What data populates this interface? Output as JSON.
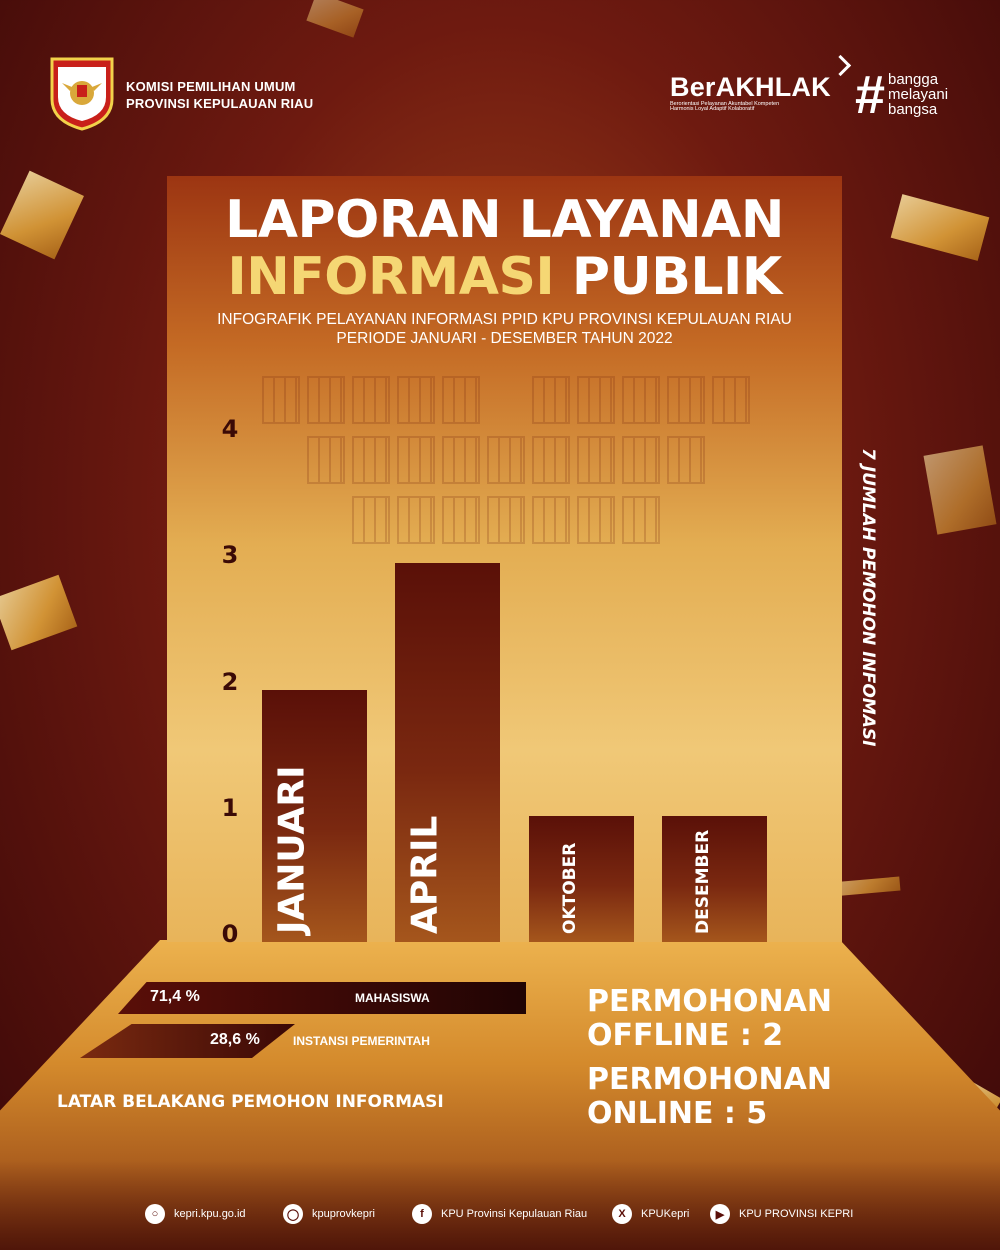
{
  "header": {
    "org_line1": "KOMISI PEMILIHAN UMUM",
    "org_line2": "PROVINSI KEPULAUAN RIAU",
    "logo_text_top": "KOMISI",
    "logo_text_bottom": "PEMILIHAN UMUM",
    "berakhlak": "BerAKHLAK",
    "berakhlak_line1": "Berorientasi Pelayanan Akuntabel Kompeten",
    "berakhlak_line2": "Harmonis Loyal Adaptif Kolaboratif",
    "hashtag": "#",
    "slogan": [
      "bangga",
      "melayani",
      "bangsa"
    ]
  },
  "title": {
    "line1": "LAPORAN LAYANAN",
    "line2_gold": "INFORMASI",
    "line2_white": "PUBLIK",
    "subtitle1": "INFOGRAFIK PELAYANAN INFORMASI PPID KPU PROVINSI KEPULAUAN RIAU",
    "subtitle2": "PERIODE JANUARI - DESEMBER TAHUN 2022"
  },
  "chart_data": {
    "type": "bar",
    "categories": [
      "JANUARI",
      "APRIL",
      "OKTOBER",
      "DESEMBER"
    ],
    "values": [
      2,
      3,
      1,
      1
    ],
    "ylim": [
      0,
      4
    ],
    "yticks": [
      "0",
      "1",
      "2",
      "3",
      "4"
    ],
    "ylabel": "7 JUMLAH PEMOHON INFOMASI",
    "grid": false
  },
  "background_stats": {
    "items": [
      {
        "percent": "71,4 %",
        "label": "MAHASISWA",
        "value": 71.4
      },
      {
        "percent": "28,6 %",
        "label": "INSTANSI PEMERINTAH",
        "value": 28.6
      }
    ],
    "caption": "LATAR BELAKANG PEMOHON INFORMASI"
  },
  "requests": {
    "offline_line1": "PERMOHONAN",
    "offline_line2": "OFFLINE : 2",
    "online_line1": "PERMOHONAN",
    "online_line2": "ONLINE : 5"
  },
  "footer": {
    "website": "kepri.kpu.go.id",
    "instagram": "kpuprovkepri",
    "facebook": "KPU Provinsi Kepulauan Riau",
    "x": "KPUKepri",
    "youtube": "KPU PROVINSI KEPRI",
    "icons": [
      "globe-icon",
      "instagram-icon",
      "facebook-icon",
      "x-icon",
      "youtube-icon"
    ]
  },
  "colors": {
    "gold_text": "#f5d774",
    "bar_dark": "#5a1008",
    "background": "#6e1a10"
  }
}
